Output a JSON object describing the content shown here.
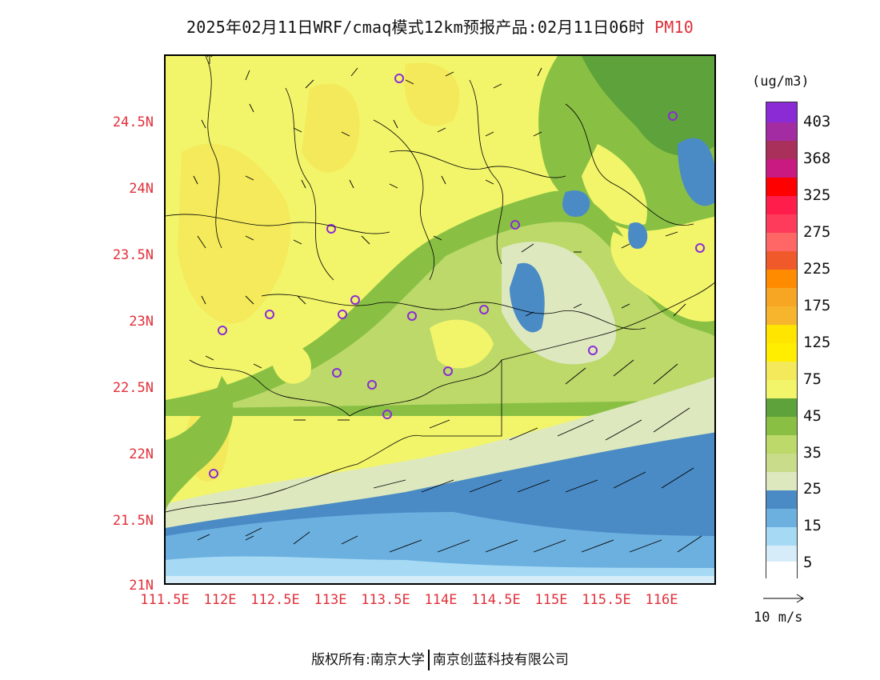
{
  "title": "2025年02月11日WRF/cmaq模式12km预报产品:02月11日06时",
  "pollutant": "PM10",
  "lat_labels": [
    "24.5N",
    "24N",
    "23.5N",
    "23N",
    "22.5N",
    "22N",
    "21.5N",
    "21N"
  ],
  "lon_labels": [
    "111.5E",
    "112E",
    "112.5E",
    "113E",
    "113.5E",
    "114E",
    "114.5E",
    "115E",
    "115.5E",
    "116E"
  ],
  "unit": "(ug/m3)",
  "legend": [
    {
      "label": "403",
      "color": "#8b2bd6"
    },
    {
      "label": "368",
      "color": "#a62aa8"
    },
    {
      "label": "325",
      "color": "#ff0000"
    },
    {
      "label": "275",
      "color": "#ff4455"
    },
    {
      "label": "225",
      "color": "#f05a2a"
    },
    {
      "label": "175",
      "color": "#f7a623"
    },
    {
      "label": "125",
      "color": "#ffe500"
    },
    {
      "label": "75",
      "color": "#f4f05a"
    },
    {
      "label": "45",
      "color": "#5ea23c"
    },
    {
      "label": "35",
      "color": "#bcd96a"
    },
    {
      "label": "25",
      "color": "#dde8bf"
    },
    {
      "label": "15",
      "color": "#6cb0e0"
    },
    {
      "label": "5",
      "color": "#d6ecf8"
    }
  ],
  "legend_bins": [
    "#8b2bd6",
    "#a32ca3",
    "#c81a80",
    "#ff0000",
    "#ff1d4b",
    "#ff3b5c",
    "#ff6666",
    "#f05a2a",
    "#ff8c00",
    "#f7a623",
    "#f7b52e",
    "#ffe500",
    "#f4e95a",
    "#f2f56a",
    "#5ea23c",
    "#89c044",
    "#bcd96a",
    "#c8dc8a",
    "#dde8bf",
    "#4a8bc6",
    "#6cb0e0",
    "#a6daf4",
    "#d6ecf8",
    "#ffffff"
  ],
  "wind_key_label": "10 m/s",
  "footer": {
    "left": "版权所有:南京大学",
    "right": "南京创蓝科技有限公司"
  }
}
